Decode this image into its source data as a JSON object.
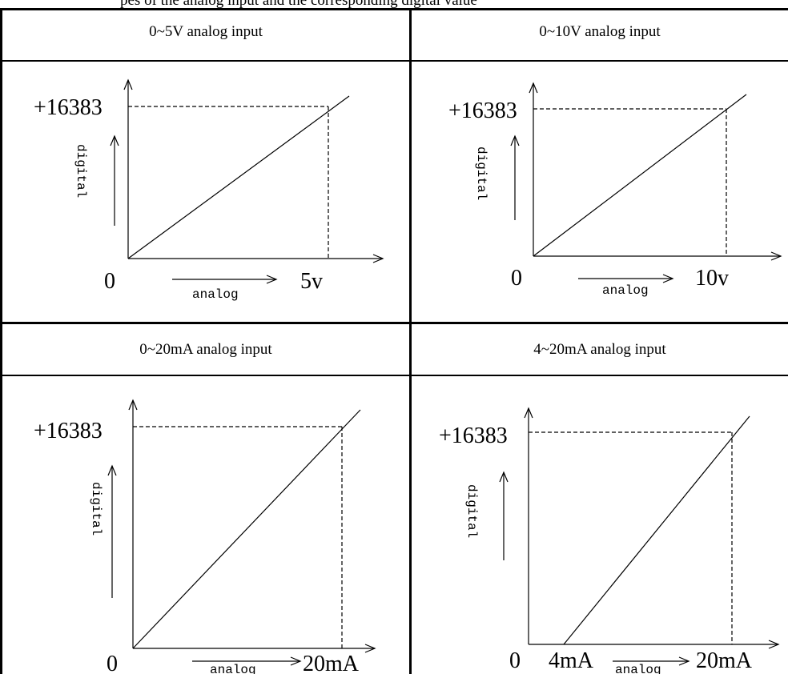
{
  "intro": "pes of the analog input and the corresponding digital value",
  "diagram_data": {
    "full_scale": "+16383",
    "origin": "0",
    "y_axis_label": "digital",
    "x_axis_label": "analog",
    "panels": [
      {
        "title": "0~5V analog input",
        "x_start": "",
        "x_end": "5v"
      },
      {
        "title": "0~10V analog input",
        "x_start": "",
        "x_end": "10v"
      },
      {
        "title": "0~20mA analog input",
        "x_start": "",
        "x_end": "20mA"
      },
      {
        "title": "4~20mA analog input",
        "x_start": "4mA",
        "x_end": "20mA"
      }
    ]
  }
}
